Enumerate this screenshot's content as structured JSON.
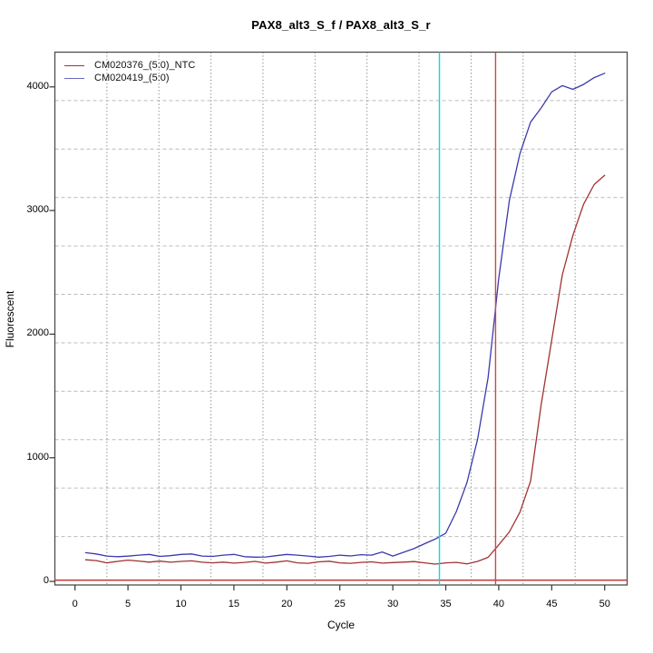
{
  "title": "PAX8_alt3_S_f / PAX8_alt3_S_r",
  "axes": {
    "x_label": "Cycle",
    "y_label": "Fluorescent",
    "x_ticks": [
      0,
      5,
      10,
      15,
      20,
      25,
      30,
      35,
      40,
      45,
      50
    ],
    "y_ticks": [
      0,
      1000,
      2000,
      3000,
      4000
    ]
  },
  "legend": {
    "items": [
      {
        "label": "CM020376_(5:0)_NTC",
        "color": "#a03232"
      },
      {
        "label": "CM020419_(5:0)",
        "color": "#6a6ac4"
      }
    ]
  },
  "colors": {
    "series_ntc": "#a03232",
    "series_sample": "#3a3aae",
    "cyan_marker": "#00dde8",
    "red_marker": "#cc4747",
    "threshold": "#c44444",
    "box_border": "#4d4d4d",
    "tick": "#333333",
    "grid_vertical": "#7d7d7d",
    "grid_horizontal": "#bcbcbc"
  },
  "chart_data": {
    "type": "line",
    "title": "PAX8_alt3_S_f / PAX8_alt3_S_r",
    "xlabel": "Cycle",
    "ylabel": "Fluorescent",
    "xlim": [
      -1.9,
      52.12
    ],
    "ylim": [
      -29,
      4281
    ],
    "grid_divisions": 11,
    "x": [
      1,
      2,
      3,
      4,
      5,
      6,
      7,
      8,
      9,
      10,
      11,
      12,
      13,
      14,
      15,
      16,
      17,
      18,
      19,
      20,
      21,
      22,
      23,
      24,
      25,
      26,
      27,
      28,
      29,
      30,
      31,
      32,
      33,
      34,
      35,
      36,
      37,
      38,
      39,
      40,
      41,
      42,
      43,
      44,
      45,
      46,
      47,
      48,
      49,
      50
    ],
    "series": [
      {
        "name": "CM020376_(5:0)_NTC",
        "values": [
          175,
          168,
          150,
          162,
          172,
          165,
          156,
          164,
          155,
          162,
          166,
          155,
          150,
          156,
          148,
          154,
          162,
          148,
          156,
          166,
          150,
          146,
          158,
          163,
          150,
          146,
          154,
          158,
          148,
          152,
          156,
          160,
          150,
          140,
          150,
          154,
          142,
          162,
          195,
          295,
          400,
          560,
          810,
          1430,
          1950,
          2480,
          2800,
          3050,
          3210,
          3285
        ]
      },
      {
        "name": "CM020419_(5:0)",
        "values": [
          232,
          222,
          205,
          200,
          204,
          212,
          218,
          202,
          208,
          218,
          222,
          205,
          202,
          212,
          218,
          200,
          196,
          198,
          208,
          218,
          212,
          205,
          196,
          202,
          212,
          206,
          216,
          212,
          238,
          205,
          235,
          265,
          305,
          342,
          390,
          565,
          800,
          1150,
          1650,
          2450,
          3080,
          3460,
          3715,
          3830,
          3960,
          4010,
          3980,
          4020,
          4075,
          4110
        ]
      }
    ],
    "markers": {
      "cyan_vline_cycle": 34.4,
      "red_vline_cycle": 39.7,
      "threshold_value": 10
    },
    "legend_position": "top-left"
  }
}
